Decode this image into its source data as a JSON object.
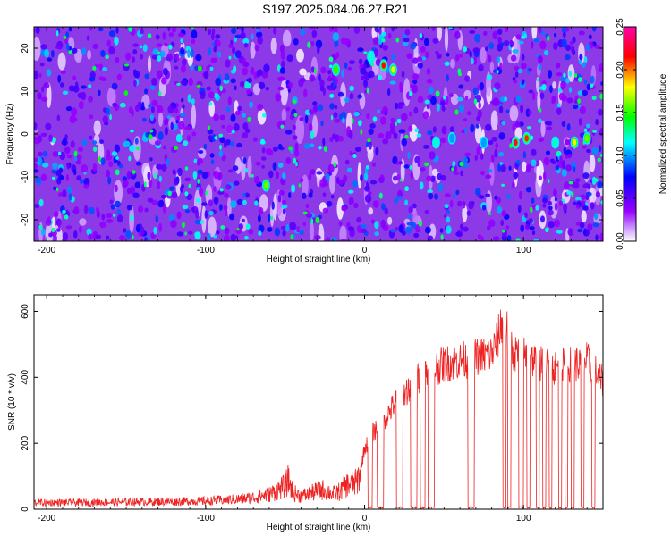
{
  "title": "S197.2025.084.06.27.R21",
  "chart_data": [
    {
      "type": "heatmap",
      "title": "S197.2025.084.06.27.R21",
      "xlabel": "Height of straight line (km)",
      "ylabel": "Frequency (Hz)",
      "xlim": [
        -208,
        150
      ],
      "ylim": [
        -25,
        25
      ],
      "x_ticks": [
        -200,
        -100,
        0,
        100
      ],
      "y_ticks": [
        -20,
        -10,
        0,
        10,
        20
      ],
      "grid": false,
      "colorbar": {
        "label": "Normalized spectral amplitude",
        "range": [
          0.0,
          0.25
        ],
        "ticks": [
          "0.00",
          "0.05",
          "0.10",
          "0.15",
          "0.20",
          "0.25"
        ],
        "colormap": [
          "#ffffff",
          "#9900ff",
          "#0000ff",
          "#00ffff",
          "#00ff00",
          "#ffff00",
          "#ff0000",
          "#ff00aa"
        ]
      },
      "features": [
        {
          "x": 12,
          "y": 16,
          "value": 0.22
        },
        {
          "x": 18,
          "y": 15,
          "value": 0.18
        },
        {
          "x": -18,
          "y": 15,
          "value": 0.15
        },
        {
          "x": 4,
          "y": 18,
          "value": 0.12
        },
        {
          "x": 95,
          "y": -2,
          "value": 0.23
        },
        {
          "x": 102,
          "y": -1,
          "value": 0.21
        },
        {
          "x": 132,
          "y": -2,
          "value": 0.18
        },
        {
          "x": 140,
          "y": -1,
          "value": 0.16
        },
        {
          "x": 120,
          "y": -2,
          "value": 0.12
        },
        {
          "x": 45,
          "y": -2,
          "value": 0.12
        },
        {
          "x": -62,
          "y": -12,
          "value": 0.16
        },
        {
          "x": 55,
          "y": -1,
          "value": 0.1
        },
        {
          "x": 75,
          "y": -2,
          "value": 0.1
        }
      ]
    },
    {
      "type": "line",
      "xlabel": "Height of straight line (km)",
      "ylabel": "SNR (10 * v/v)",
      "xlim": [
        -208,
        150
      ],
      "ylim": [
        0,
        650
      ],
      "x_ticks": [
        -200,
        -100,
        0,
        100
      ],
      "y_ticks": [
        0,
        200,
        400,
        600
      ],
      "grid": false,
      "color": "#ee2222",
      "series": [
        {
          "x": [
            -208,
            -180,
            -150,
            -120,
            -100,
            -80,
            -70,
            -60,
            -50,
            -48,
            -45,
            -40,
            -35,
            -30,
            -25,
            -20,
            -15,
            -12,
            -10,
            -5,
            -3,
            0,
            2,
            5,
            8,
            10,
            15,
            20,
            25,
            30,
            40,
            50,
            60,
            70,
            80,
            84,
            86,
            88,
            90,
            95,
            100,
            110,
            120,
            130,
            135,
            140,
            145,
            150
          ],
          "y": [
            20,
            20,
            22,
            23,
            25,
            30,
            35,
            45,
            70,
            90,
            50,
            40,
            45,
            55,
            60,
            45,
            55,
            70,
            75,
            80,
            110,
            185,
            200,
            230,
            250,
            260,
            290,
            330,
            350,
            380,
            420,
            440,
            450,
            460,
            470,
            520,
            560,
            630,
            520,
            470,
            470,
            440,
            430,
            440,
            440,
            450,
            420,
            380
          ]
        }
      ],
      "dropouts": [
        [
          2,
          5
        ],
        [
          8,
          12
        ],
        [
          20,
          24
        ],
        [
          29,
          33
        ],
        [
          35,
          38
        ],
        [
          40,
          44
        ],
        [
          65,
          69
        ],
        [
          87,
          89
        ],
        [
          90,
          92
        ],
        [
          97,
          100
        ],
        [
          102,
          104
        ],
        [
          108,
          110
        ],
        [
          112,
          114
        ],
        [
          116,
          118
        ],
        [
          122,
          124
        ],
        [
          126,
          128
        ],
        [
          130,
          132
        ],
        [
          136,
          138
        ],
        [
          143,
          145
        ]
      ]
    }
  ]
}
